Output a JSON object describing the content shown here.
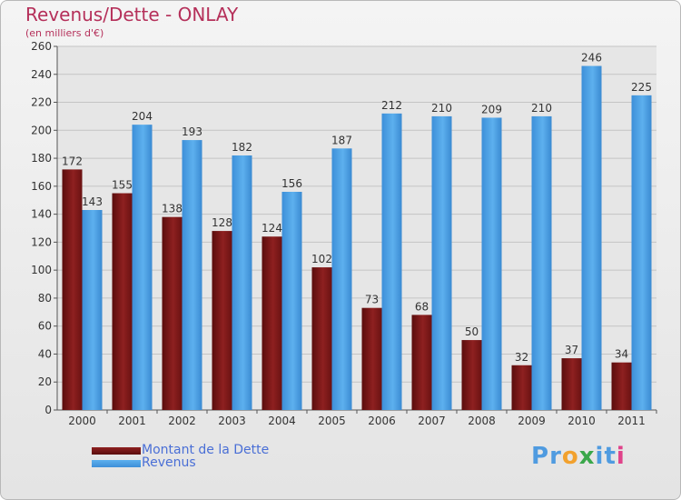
{
  "header": {
    "title": "Revenus/Dette - ONLAY",
    "subtitle": "(en milliers d'€)"
  },
  "logo": {
    "text": "Proxiti",
    "letters": [
      {
        "ch": "P",
        "color": "#4f9be0"
      },
      {
        "ch": "r",
        "color": "#4f9be0"
      },
      {
        "ch": "o",
        "color": "#f2a12e"
      },
      {
        "ch": "x",
        "color": "#3aa74a"
      },
      {
        "ch": "i",
        "color": "#4f9be0"
      },
      {
        "ch": "t",
        "color": "#4f9be0"
      },
      {
        "ch": "i",
        "color": "#e0428a"
      }
    ]
  },
  "colors": {
    "debt": "#8b1c1c",
    "revenue": "#4aa3e6",
    "title": "#b5305a",
    "legend_text": "#4a6fd6"
  },
  "chart_data": {
    "type": "bar",
    "title": "Revenus/Dette - ONLAY",
    "subtitle": "(en milliers d'€)",
    "categories": [
      "2000",
      "2001",
      "2002",
      "2003",
      "2004",
      "2005",
      "2006",
      "2007",
      "2008",
      "2009",
      "2010",
      "2011"
    ],
    "series": [
      {
        "name": "Montant de la Dette",
        "color": "#8b1c1c",
        "values": [
          172,
          155,
          138,
          128,
          124,
          102,
          73,
          68,
          50,
          32,
          37,
          34
        ]
      },
      {
        "name": "Revenus",
        "color": "#4aa3e6",
        "values": [
          143,
          204,
          193,
          182,
          156,
          187,
          212,
          210,
          209,
          210,
          246,
          225
        ]
      }
    ],
    "ylim": [
      0,
      260
    ],
    "ytick_step": 20,
    "yticks": [
      "0",
      "20",
      "40",
      "60",
      "80",
      "100",
      "120",
      "140",
      "160",
      "180",
      "200",
      "220",
      "240",
      "260"
    ],
    "grid": true,
    "legend_position": "bottom-left"
  }
}
